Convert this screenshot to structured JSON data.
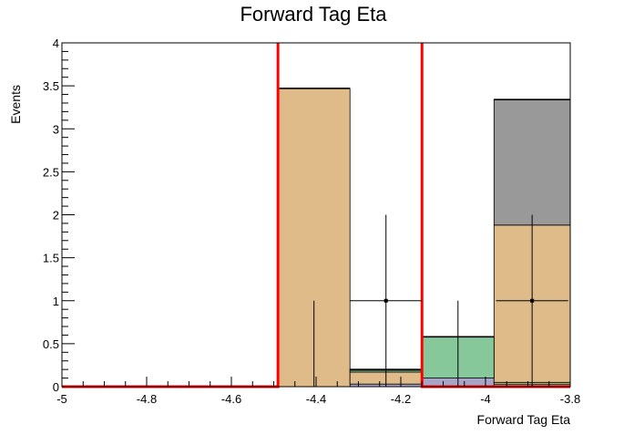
{
  "chart_data": {
    "type": "bar",
    "title": "Forward Tag Eta",
    "xlabel": "Forward Tag Eta",
    "ylabel": "Events",
    "xlim": [
      -5,
      -3.8
    ],
    "ylim": [
      0,
      4
    ],
    "x_ticks": [
      {
        "v": -5,
        "label": "-5"
      },
      {
        "v": -4.8,
        "label": "-4.8"
      },
      {
        "v": -4.6,
        "label": "-4.6"
      },
      {
        "v": -4.4,
        "label": "-4.4"
      },
      {
        "v": -4.2,
        "label": "-4.2"
      },
      {
        "v": -4,
        "label": "-4"
      },
      {
        "v": -3.8,
        "label": "-3.8"
      }
    ],
    "y_ticks": [
      {
        "v": 0,
        "label": "0"
      },
      {
        "v": 0.5,
        "label": "0.5"
      },
      {
        "v": 1,
        "label": "1"
      },
      {
        "v": 1.5,
        "label": "1.5"
      },
      {
        "v": 2,
        "label": "2"
      },
      {
        "v": 2.5,
        "label": "2.5"
      },
      {
        "v": 3,
        "label": "3"
      },
      {
        "v": 3.5,
        "label": "3.5"
      },
      {
        "v": 4,
        "label": "4"
      }
    ],
    "bin_edges": [
      -5,
      -4.49,
      -4.32,
      -4.15,
      -3.98,
      -3.8
    ],
    "stack": [
      {
        "color": "#a7a4c8",
        "values": [
          0,
          0,
          0.03,
          0.1,
          0.03
        ]
      },
      {
        "color": "#e8e27a",
        "values": [
          0,
          0,
          0,
          0,
          0.02
        ]
      },
      {
        "color": "#e0bb8a",
        "values": [
          0,
          3.47,
          0.14,
          0,
          1.83
        ]
      },
      {
        "color": "#86c89a",
        "values": [
          0,
          0,
          0.02,
          0.48,
          0
        ]
      },
      {
        "color": "#999999",
        "values": [
          0,
          0,
          0.01,
          0,
          1.46
        ]
      }
    ],
    "data_points": [
      {
        "x": -4.405,
        "y": 0,
        "yerr_high": 1.0
      },
      {
        "x": -4.235,
        "y": 1,
        "yerr_high": 1.0
      },
      {
        "x": -4.065,
        "y": 0,
        "yerr_high": 1.0
      },
      {
        "x": -3.89,
        "y": 1,
        "yerr_high": 1.0
      }
    ],
    "signal": {
      "color": "#ff0000",
      "values": [
        0,
        4.3,
        4.3,
        0,
        0
      ]
    }
  }
}
